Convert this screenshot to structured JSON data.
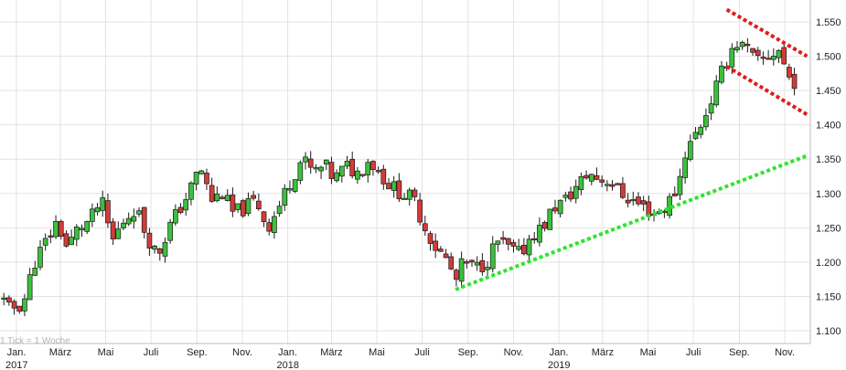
{
  "chart_data": {
    "type": "candlestick",
    "interval_note": "1 Tick = 1 Woche",
    "title": "",
    "xlabel": "",
    "ylabel": "",
    "ylim": [
      1.08,
      1.565
    ],
    "y_ticks": [
      "1.550",
      "1.500",
      "1.450",
      "1.400",
      "1.350",
      "1.300",
      "1.250",
      "1.200",
      "1.150",
      "1.100"
    ],
    "grid": true,
    "x_month_labels": [
      {
        "label": "Jan.",
        "date": "2017-01-01",
        "year": "2017"
      },
      {
        "label": "März",
        "date": "2017-03-01"
      },
      {
        "label": "Mai",
        "date": "2017-05-01"
      },
      {
        "label": "Juli",
        "date": "2017-07-01"
      },
      {
        "label": "Sep.",
        "date": "2017-09-01"
      },
      {
        "label": "Nov.",
        "date": "2017-11-01"
      },
      {
        "label": "Jan.",
        "date": "2018-01-01",
        "year": "2018"
      },
      {
        "label": "März",
        "date": "2018-03-01"
      },
      {
        "label": "Mai",
        "date": "2018-05-01"
      },
      {
        "label": "Juli",
        "date": "2018-07-01"
      },
      {
        "label": "Sep.",
        "date": "2018-09-01"
      },
      {
        "label": "Nov.",
        "date": "2018-11-01"
      },
      {
        "label": "Jan.",
        "date": "2019-01-01",
        "year": "2019"
      },
      {
        "label": "März",
        "date": "2019-03-01"
      },
      {
        "label": "Mai",
        "date": "2019-05-01"
      },
      {
        "label": "Juli",
        "date": "2019-07-01"
      },
      {
        "label": "Sep.",
        "date": "2019-09-01"
      },
      {
        "label": "Nov.",
        "date": "2019-11-01"
      }
    ],
    "close_path": [
      [
        "2016-12-01",
        1.17
      ],
      [
        "2016-12-20",
        1.13
      ],
      [
        "2017-01-10",
        1.14
      ],
      [
        "2017-01-25",
        1.2
      ],
      [
        "2017-02-10",
        1.23
      ],
      [
        "2017-02-25",
        1.26
      ],
      [
        "2017-03-10",
        1.22
      ],
      [
        "2017-03-25",
        1.25
      ],
      [
        "2017-04-10",
        1.26
      ],
      [
        "2017-04-25",
        1.29
      ],
      [
        "2017-05-10",
        1.23
      ],
      [
        "2017-05-25",
        1.26
      ],
      [
        "2017-06-10",
        1.28
      ],
      [
        "2017-06-25",
        1.24
      ],
      [
        "2017-07-10",
        1.21
      ],
      [
        "2017-07-25",
        1.25
      ],
      [
        "2017-08-10",
        1.28
      ],
      [
        "2017-08-25",
        1.31
      ],
      [
        "2017-09-05",
        1.34
      ],
      [
        "2017-09-20",
        1.29
      ],
      [
        "2017-10-05",
        1.3
      ],
      [
        "2017-10-20",
        1.27
      ],
      [
        "2017-11-05",
        1.28
      ],
      [
        "2017-11-20",
        1.29
      ],
      [
        "2017-12-05",
        1.25
      ],
      [
        "2017-12-20",
        1.28
      ],
      [
        "2018-01-05",
        1.32
      ],
      [
        "2018-01-20",
        1.35
      ],
      [
        "2018-02-05",
        1.33
      ],
      [
        "2018-02-20",
        1.34
      ],
      [
        "2018-03-05",
        1.32
      ],
      [
        "2018-03-20",
        1.34
      ],
      [
        "2018-04-05",
        1.33
      ],
      [
        "2018-04-20",
        1.35
      ],
      [
        "2018-05-05",
        1.33
      ],
      [
        "2018-05-20",
        1.31
      ],
      [
        "2018-06-05",
        1.3
      ],
      [
        "2018-06-20",
        1.29
      ],
      [
        "2018-07-05",
        1.25
      ],
      [
        "2018-07-20",
        1.22
      ],
      [
        "2018-08-05",
        1.2
      ],
      [
        "2018-08-15",
        1.17
      ],
      [
        "2018-08-25",
        1.2
      ],
      [
        "2018-09-10",
        1.19
      ],
      [
        "2018-09-25",
        1.2
      ],
      [
        "2018-10-10",
        1.23
      ],
      [
        "2018-10-25",
        1.22
      ],
      [
        "2018-11-10",
        1.21
      ],
      [
        "2018-11-25",
        1.24
      ],
      [
        "2018-12-10",
        1.25
      ],
      [
        "2018-12-25",
        1.28
      ],
      [
        "2019-01-10",
        1.29
      ],
      [
        "2019-01-25",
        1.31
      ],
      [
        "2019-02-10",
        1.33
      ],
      [
        "2019-02-25",
        1.32
      ],
      [
        "2019-03-10",
        1.32
      ],
      [
        "2019-03-25",
        1.3
      ],
      [
        "2019-04-10",
        1.29
      ],
      [
        "2019-04-25",
        1.28
      ],
      [
        "2019-05-10",
        1.27
      ],
      [
        "2019-05-25",
        1.28
      ],
      [
        "2019-06-10",
        1.31
      ],
      [
        "2019-06-20",
        1.36
      ],
      [
        "2019-07-01",
        1.38
      ],
      [
        "2019-07-15",
        1.41
      ],
      [
        "2019-07-30",
        1.45
      ],
      [
        "2019-08-10",
        1.48
      ],
      [
        "2019-08-20",
        1.51
      ],
      [
        "2019-08-30",
        1.52
      ],
      [
        "2019-09-10",
        1.51
      ],
      [
        "2019-09-25",
        1.49
      ],
      [
        "2019-10-10",
        1.5
      ],
      [
        "2019-10-25",
        1.51
      ],
      [
        "2019-11-05",
        1.47
      ],
      [
        "2019-11-20",
        1.46
      ]
    ],
    "trendlines": [
      {
        "color": "#2ee52e",
        "start": [
          "2018-08-15",
          1.16
        ],
        "end": [
          "2019-12-01",
          1.355
        ]
      },
      {
        "color": "#e01c1c",
        "start": [
          "2019-08-15",
          1.568
        ],
        "end": [
          "2019-12-01",
          1.5
        ]
      },
      {
        "color": "#e01c1c",
        "start": [
          "2019-08-15",
          1.485
        ],
        "end": [
          "2019-12-01",
          1.415
        ]
      }
    ],
    "colors": {
      "up": "#3cc03c",
      "down": "#d33b3b",
      "grid": "#e3e3e3"
    }
  }
}
